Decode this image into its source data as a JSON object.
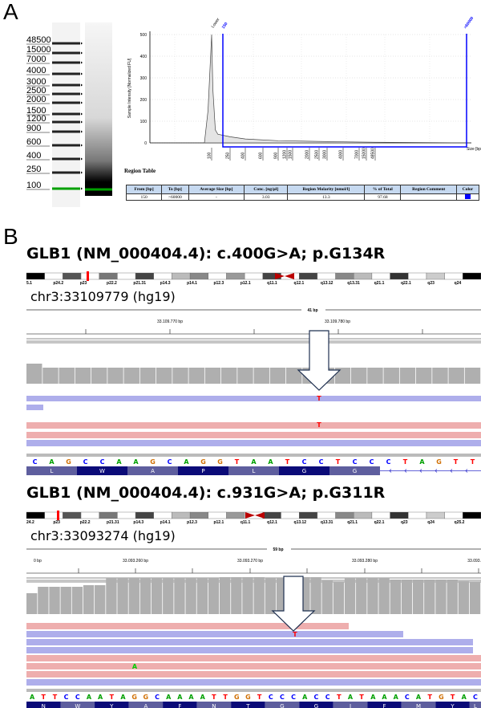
{
  "panel_a": {
    "label": "A",
    "ladder_sizes": [
      "48500",
      "15000",
      "7000",
      "4000",
      "3000",
      "2500",
      "2000",
      "1500",
      "1200",
      "900",
      "600",
      "400",
      "250",
      "100"
    ],
    "marker_color": "#00a000",
    "region_table": {
      "title": "Region Table",
      "headers": [
        "From [bp]",
        "To [bp]",
        "Average Size [bp]",
        "Conc. [ng/µl]",
        "Region Molarity [nmol/l]",
        "% of Total",
        "Region Comment",
        "Color"
      ],
      "rows": [
        [
          "150",
          ">60000",
          "-",
          "3.03",
          "13.3",
          "97.68",
          "",
          ""
        ]
      ],
      "region_color": "#0000ff"
    }
  },
  "chart_data": {
    "type": "area",
    "ylabel": "Sample Intensity [Normalized FU]",
    "xlabel": "Size [bp]",
    "ylim": [
      0,
      500
    ],
    "y_ticks": [
      "0",
      "100",
      "200",
      "300",
      "400",
      "500"
    ],
    "x_ticks": [
      "100",
      "250",
      "400",
      "600",
      "900",
      "1200",
      "1500",
      "2000",
      "2500",
      "3000",
      "4000",
      "7000",
      "15000",
      "48500"
    ],
    "annotations": {
      "lower_marker": "Lower",
      "region_start": "150",
      "region_end": ">60000"
    },
    "grid": true,
    "series": [
      {
        "points": [
          [
            90,
            0
          ],
          [
            95,
            150
          ],
          [
            100,
            500
          ],
          [
            110,
            250
          ],
          [
            130,
            60
          ],
          [
            150,
            40
          ],
          [
            250,
            28
          ],
          [
            400,
            18
          ],
          [
            900,
            10
          ],
          [
            4000,
            5
          ],
          [
            48500,
            3
          ],
          [
            60000,
            0
          ]
        ]
      }
    ],
    "region_color": "#0000ff"
  },
  "panel_b": {
    "label": "B",
    "variants": [
      {
        "title": "GLB1 (NM_000404.4): c.400G>A; p.G134R",
        "locus": "chr3:33109779 (hg19)",
        "span": "41 bp",
        "ruler_labels": [
          "33.109.770 bp",
          "33.109.780 bp"
        ],
        "bands": [
          "5.1",
          "p24.2",
          "p23",
          "p22.2",
          "p21.31",
          "p14.3",
          "p14.1",
          "p12.3",
          "p12.1",
          "q11.1",
          "q12.1",
          "q13.12",
          "q13.31",
          "q21.1",
          "q22.1",
          "q23",
          "q24"
        ],
        "mismatch_base": "T",
        "sequence": "CAGCCAAGCAGGTAATCCTCCCTAGTT",
        "amino_acids": [
          "L",
          "W",
          "A",
          "P",
          "L",
          "G",
          "G"
        ]
      },
      {
        "title": "GLB1 (NM_000404.4): c.931G>A; p.G311R",
        "locus": "chr3:33093274 (hg19)",
        "span": "59 bp",
        "ruler_labels": [
          "0 bp",
          "33.093.260 bp",
          "33.093.270 bp",
          "33.093.280 bp",
          "33.093.2"
        ],
        "bands": [
          "24.2",
          "p23",
          "p22.2",
          "p21.31",
          "p14.3",
          "p14.1",
          "p12.3",
          "p12.1",
          "q11.1",
          "q12.1",
          "q13.12",
          "q13.31",
          "q21.1",
          "q22.1",
          "q23",
          "q24",
          "q25.2"
        ],
        "mismatch_base": "T",
        "other_mismatch": "A",
        "sequence": "ATTCCAATAGGCAAAATTGGTCCCACCTATAAACATGTAC",
        "amino_acids": [
          "N",
          "W",
          "Y",
          "A",
          "F",
          "N",
          "T",
          "G",
          "G",
          "I",
          "F",
          "M",
          "Y",
          "L"
        ]
      }
    ],
    "base_colors": {
      "A": "#00a000",
      "C": "#0000ff",
      "G": "#d17105",
      "T": "#ff0000"
    },
    "read_colors": {
      "forward": "#eeaeae",
      "reverse": "#aeaeeb"
    },
    "coverage_color": "#afafaf",
    "arrow_icon": "down-arrow"
  }
}
